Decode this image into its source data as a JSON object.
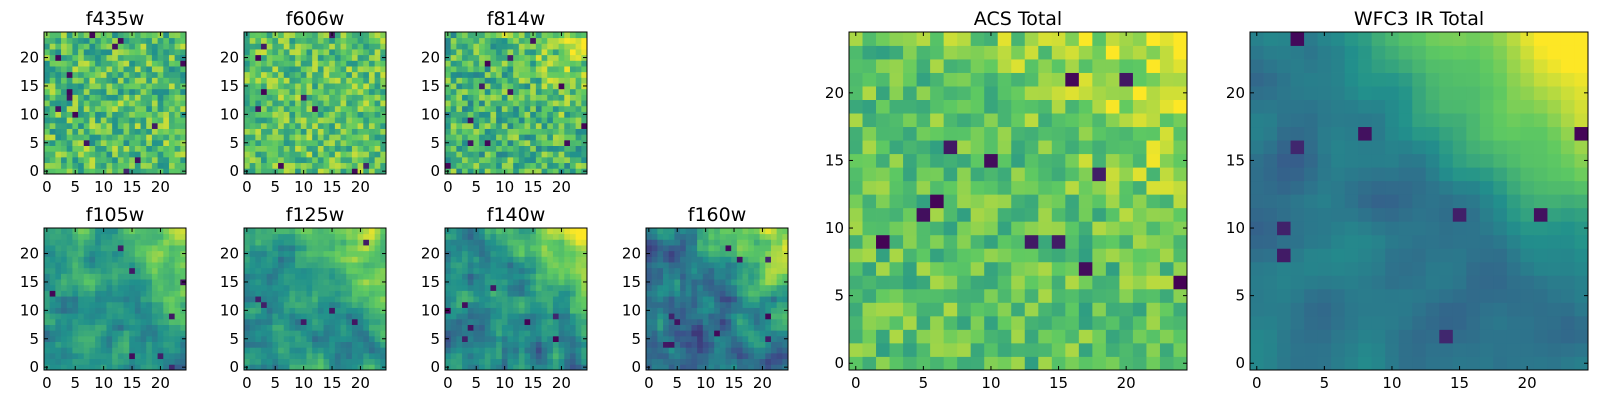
{
  "figure": {
    "colormap": "viridis",
    "background": "#ffffff",
    "axes_color": "#000000",
    "colormap_stops": [
      "#440154",
      "#3b528b",
      "#21918c",
      "#5ec962",
      "#fde725"
    ]
  },
  "chart_data": [
    {
      "type": "heatmap",
      "title": "f435w",
      "grid": [
        25,
        25
      ],
      "xlim": [
        0,
        24
      ],
      "ylim": [
        0,
        24
      ],
      "xticks": [
        "0",
        "5",
        "10",
        "15",
        "20"
      ],
      "yticks": [
        "0",
        "5",
        "10",
        "15",
        "20"
      ],
      "value_range": [
        0,
        1
      ],
      "colormap": "viridis",
      "pattern": {
        "base": 0.7,
        "noise": 0.22,
        "smooth": 0,
        "dark_spots": 14,
        "gradient": 0.0,
        "seed": 11
      }
    },
    {
      "type": "heatmap",
      "title": "f606w",
      "grid": [
        25,
        25
      ],
      "xlim": [
        0,
        24
      ],
      "ylim": [
        0,
        24
      ],
      "xticks": [
        "0",
        "5",
        "10",
        "15",
        "20"
      ],
      "yticks": [
        "0",
        "5",
        "10",
        "15",
        "20"
      ],
      "value_range": [
        0,
        1
      ],
      "colormap": "viridis",
      "pattern": {
        "base": 0.72,
        "noise": 0.2,
        "smooth": 0,
        "dark_spots": 10,
        "gradient": 0.0,
        "seed": 23
      }
    },
    {
      "type": "heatmap",
      "title": "f814w",
      "grid": [
        25,
        25
      ],
      "xlim": [
        0,
        24
      ],
      "ylim": [
        0,
        24
      ],
      "xticks": [
        "0",
        "5",
        "10",
        "15",
        "20"
      ],
      "yticks": [
        "0",
        "5",
        "10",
        "15",
        "20"
      ],
      "value_range": [
        0,
        1
      ],
      "colormap": "viridis",
      "pattern": {
        "base": 0.68,
        "noise": 0.22,
        "smooth": 0,
        "dark_spots": 12,
        "gradient": 0.12,
        "seed": 37
      }
    },
    {
      "type": "heatmap",
      "title": "f105w",
      "grid": [
        25,
        25
      ],
      "xlim": [
        0,
        24
      ],
      "ylim": [
        0,
        24
      ],
      "xticks": [
        "0",
        "5",
        "10",
        "15",
        "20"
      ],
      "yticks": [
        "0",
        "5",
        "10",
        "15",
        "20"
      ],
      "value_range": [
        0,
        1
      ],
      "colormap": "viridis",
      "pattern": {
        "base": 0.55,
        "noise": 0.22,
        "smooth": 1,
        "dark_spots": 8,
        "gradient": 0.25,
        "seed": 41
      }
    },
    {
      "type": "heatmap",
      "title": "f125w",
      "grid": [
        25,
        25
      ],
      "xlim": [
        0,
        24
      ],
      "ylim": [
        0,
        24
      ],
      "xticks": [
        "0",
        "5",
        "10",
        "15",
        "20"
      ],
      "yticks": [
        "0",
        "5",
        "10",
        "15",
        "20"
      ],
      "value_range": [
        0,
        1
      ],
      "colormap": "viridis",
      "pattern": {
        "base": 0.55,
        "noise": 0.22,
        "smooth": 1,
        "dark_spots": 6,
        "gradient": 0.28,
        "seed": 53
      }
    },
    {
      "type": "heatmap",
      "title": "f140w",
      "grid": [
        25,
        25
      ],
      "xlim": [
        0,
        24
      ],
      "ylim": [
        0,
        24
      ],
      "xticks": [
        "0",
        "5",
        "10",
        "15",
        "20"
      ],
      "yticks": [
        "0",
        "5",
        "10",
        "15",
        "20"
      ],
      "value_range": [
        0,
        1
      ],
      "colormap": "viridis",
      "pattern": {
        "base": 0.5,
        "noise": 0.22,
        "smooth": 1,
        "dark_spots": 8,
        "gradient": 0.35,
        "seed": 67
      }
    },
    {
      "type": "heatmap",
      "title": "f160w",
      "grid": [
        25,
        25
      ],
      "xlim": [
        0,
        24
      ],
      "ylim": [
        0,
        24
      ],
      "xticks": [
        "0",
        "5",
        "10",
        "15",
        "20"
      ],
      "yticks": [
        "0",
        "5",
        "10",
        "15",
        "20"
      ],
      "value_range": [
        0,
        1
      ],
      "colormap": "viridis",
      "pattern": {
        "base": 0.45,
        "noise": 0.22,
        "smooth": 1,
        "dark_spots": 10,
        "gradient": 0.4,
        "seed": 79
      }
    },
    {
      "type": "heatmap",
      "title": "ACS Total",
      "grid": [
        25,
        25
      ],
      "xlim": [
        0,
        24
      ],
      "ylim": [
        0,
        24
      ],
      "xticks": [
        "0",
        "5",
        "10",
        "15",
        "20"
      ],
      "yticks": [
        "0",
        "5",
        "10",
        "15",
        "20"
      ],
      "value_range": [
        0,
        1
      ],
      "colormap": "viridis",
      "pattern": {
        "base": 0.74,
        "noise": 0.16,
        "smooth": 0,
        "dark_spots": 12,
        "gradient": 0.15,
        "seed": 97
      }
    },
    {
      "type": "heatmap",
      "title": "WFC3 IR Total",
      "grid": [
        25,
        25
      ],
      "xlim": [
        0,
        24
      ],
      "ylim": [
        0,
        24
      ],
      "xticks": [
        "0",
        "5",
        "10",
        "15",
        "20"
      ],
      "yticks": [
        "0",
        "5",
        "10",
        "15",
        "20"
      ],
      "value_range": [
        0,
        1
      ],
      "colormap": "viridis",
      "pattern": {
        "base": 0.45,
        "noise": 0.1,
        "smooth": 2,
        "dark_spots": 10,
        "gradient": 0.5,
        "seed": 113
      }
    }
  ]
}
